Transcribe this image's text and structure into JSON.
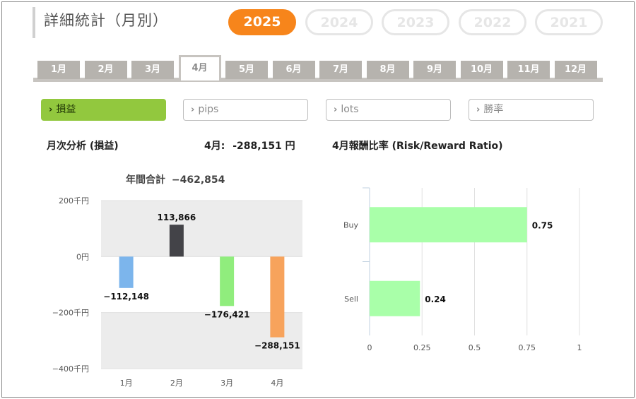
{
  "header": {
    "title": "詳細統計（月別）"
  },
  "years": [
    {
      "label": "2025",
      "active": true
    },
    {
      "label": "2024",
      "active": false
    },
    {
      "label": "2023",
      "active": false
    },
    {
      "label": "2022",
      "active": false
    },
    {
      "label": "2021",
      "active": false
    }
  ],
  "months": [
    "1月",
    "2月",
    "3月",
    "4月",
    "5月",
    "6月",
    "7月",
    "8月",
    "9月",
    "10月",
    "11月",
    "12月"
  ],
  "active_month": "4月",
  "metrics": [
    {
      "label": "損益",
      "active": true
    },
    {
      "label": "pips",
      "active": false
    },
    {
      "label": "lots",
      "active": false
    },
    {
      "label": "勝率",
      "active": false
    }
  ],
  "left_panel": {
    "heading": "月次分析 (損益)",
    "month_label": "4月:",
    "month_value": "-288,151 円",
    "annual_label": "年間合計",
    "annual_value": "−462,854"
  },
  "right_panel": {
    "heading": "4月報酬比率 (Risk/Reward Ratio)"
  },
  "colors": {
    "accent": "#f7851b",
    "metric_active": "#92c83e",
    "tab": "#b6b3ae"
  },
  "chart_data": [
    {
      "type": "bar",
      "categories": [
        "1月",
        "2月",
        "3月",
        "4月"
      ],
      "values": [
        -112148,
        113866,
        -176421,
        -288151
      ],
      "value_labels": [
        "−112,148",
        "113,866",
        "−176,421",
        "−288,151"
      ],
      "bar_colors": [
        "#7cb5ec",
        "#434348",
        "#90ed7d",
        "#f7a35c"
      ],
      "yticks": [
        200,
        0,
        -200,
        -400
      ],
      "ytick_labels": [
        "200千円",
        "0円",
        "−200千円",
        "−400千円"
      ],
      "ylim": [
        -400000,
        200000
      ],
      "grid": true
    },
    {
      "type": "bar",
      "orientation": "horizontal",
      "categories": [
        "Buy",
        "Sell"
      ],
      "values": [
        0.75,
        0.24
      ],
      "value_labels": [
        "0.75",
        "0.24"
      ],
      "bar_color": "#a9ffa9",
      "xticks": [
        0,
        0.25,
        0.5,
        0.75,
        1
      ],
      "xtick_labels": [
        "0",
        "0.25",
        "0.5",
        "0.75",
        "1"
      ],
      "xlim": [
        0,
        1
      ],
      "grid": true
    }
  ]
}
